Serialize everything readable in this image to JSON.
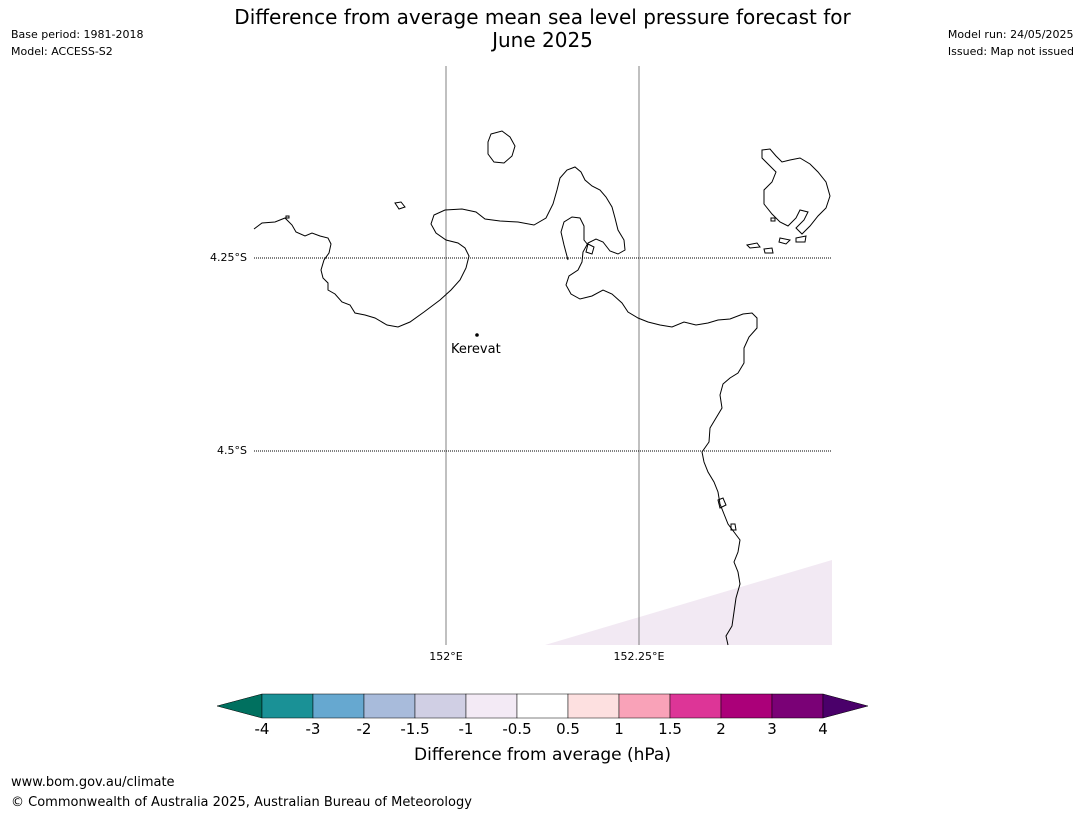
{
  "title": {
    "line1": "Difference from average mean sea level pressure forecast for",
    "line2": "June 2025"
  },
  "meta_left": {
    "base_period": "Base period: 1981-2018",
    "model": "Model: ACCESS-S2"
  },
  "meta_right": {
    "model_run": "Model run: 24/05/2025",
    "issued": "Issued: Map not issued"
  },
  "map": {
    "lat_labels": [
      "4.25°S",
      "4.5°S"
    ],
    "lon_labels": [
      "152°E",
      "152.25°E"
    ],
    "place": {
      "name": "Kerevat"
    },
    "colors": {
      "coast": "#000000",
      "gridline": "#808080",
      "shaded_region": "#f2e9f3"
    }
  },
  "colorbar": {
    "ticks": [
      "-4",
      "-3",
      "-2",
      "-1.5",
      "-1",
      "-0.5",
      "0.5",
      "1",
      "1.5",
      "2",
      "3",
      "4"
    ],
    "colors": {
      "under": "#00705f",
      "bins": [
        "#1a9196",
        "#66a8d0",
        "#a8bbdb",
        "#d0cfe4",
        "#f3eaf5",
        "#ffffff",
        "#fde0e0",
        "#f9a2b8",
        "#dd3597",
        "#ab0079",
        "#7a0176"
      ],
      "over": "#4a006a"
    },
    "label": "Difference from average (hPa)"
  },
  "footer": {
    "url": "www.bom.gov.au/climate",
    "copyright": "© Commonwealth of Australia 2025, Australian Bureau of Meteorology"
  }
}
